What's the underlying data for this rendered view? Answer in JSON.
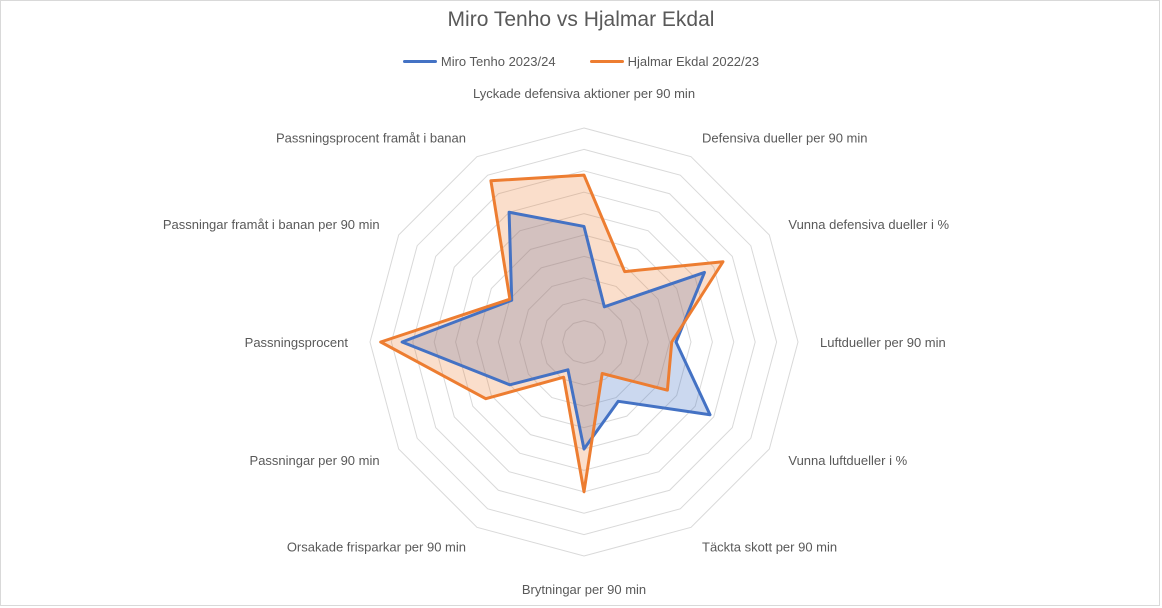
{
  "chart_data": {
    "type": "radar",
    "title": "Miro Tenho vs Hjalmar Ekdal",
    "legend_position": "top",
    "grid": true,
    "r_range": [
      0,
      10
    ],
    "grid_levels": 10,
    "categories": [
      "Lyckade defensiva aktioner per 90 min",
      "Defensiva dueller per 90 min",
      "Vunna defensiva dueller i %",
      "Luftdueller per 90 min",
      "Vunna luftdueller i %",
      "Täckta skott per 90 min",
      "Brytningar per 90 min",
      "Orsakade frisparkar per 90 min",
      "Passningar per 90 min",
      "Passningsprocent",
      "Passningar framåt i banan per 90 min",
      "Passningsprocent framåt i banan"
    ],
    "series": [
      {
        "name": "Miro Tenho 2023/24",
        "color": "#4472c4",
        "fill": "#4472c4",
        "values": [
          5.4,
          1.9,
          6.5,
          4.3,
          6.8,
          3.2,
          5.0,
          1.5,
          4.0,
          8.5,
          3.9,
          7.0
        ]
      },
      {
        "name": "Hjalmar Ekdal 2022/23",
        "color": "#ed7d31",
        "fill": "#ed7d31",
        "values": [
          7.8,
          3.8,
          7.5,
          4.1,
          4.5,
          1.7,
          7.0,
          1.9,
          5.3,
          9.5,
          4.0,
          8.7
        ]
      }
    ]
  }
}
